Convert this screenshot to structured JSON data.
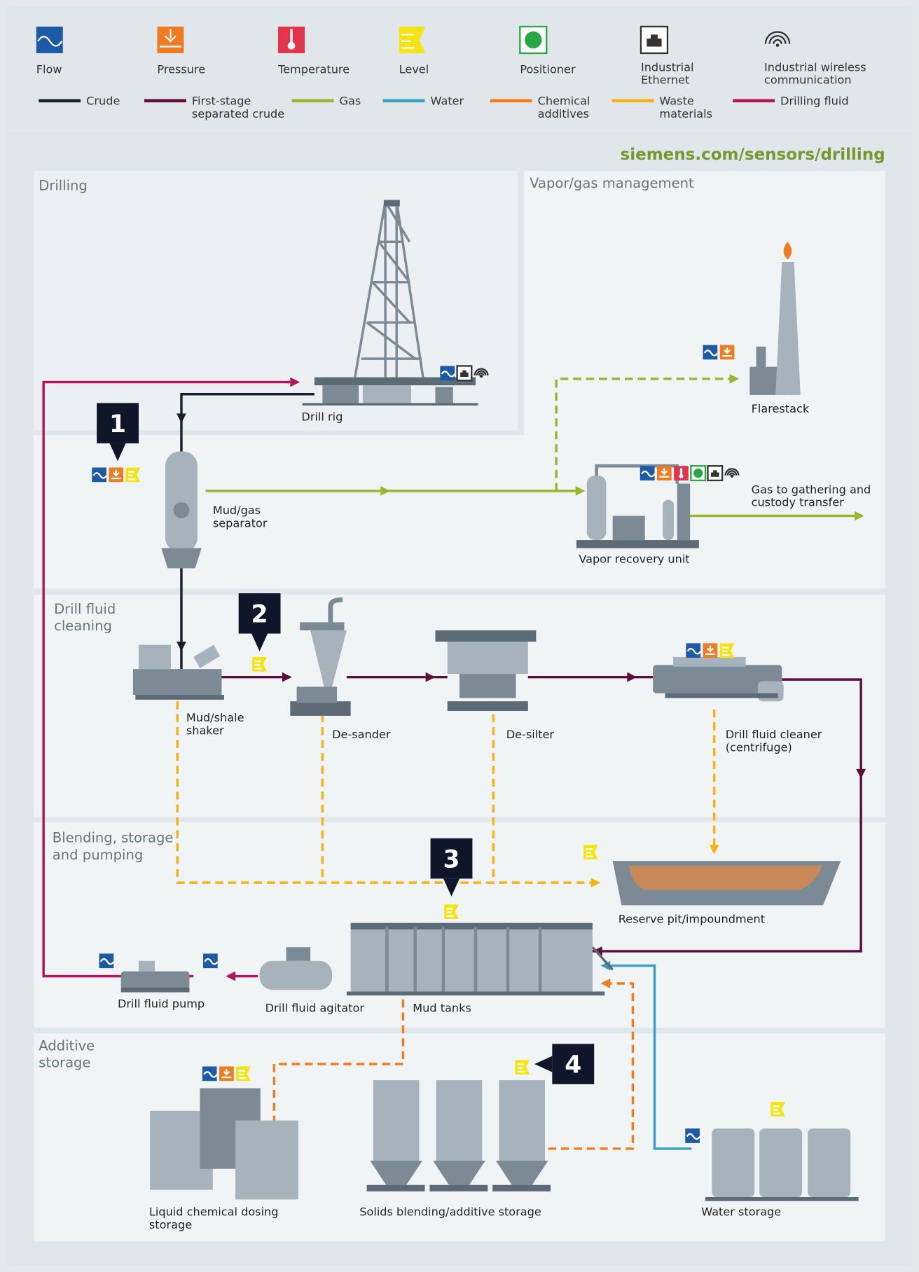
{
  "legend": {
    "instruments": [
      {
        "label": [
          "Flow"
        ]
      },
      {
        "label": [
          "Pressure"
        ]
      },
      {
        "label": [
          "Temperature"
        ]
      },
      {
        "label": [
          "Level"
        ]
      },
      {
        "label": [
          "Positioner"
        ]
      },
      {
        "label": [
          "Industrial",
          "Ethernet"
        ]
      },
      {
        "label": [
          "Industrial wireless",
          "communication"
        ]
      }
    ],
    "media": [
      {
        "label": [
          "Crude"
        ],
        "color": "#17202a"
      },
      {
        "label": [
          "First-stage",
          "separated crude"
        ],
        "color": "#5b0f3a"
      },
      {
        "label": [
          "Gas"
        ],
        "color": "#9bb431"
      },
      {
        "label": [
          "Water"
        ],
        "color": "#3aa0c2"
      },
      {
        "label": [
          "Chemical",
          "additives"
        ],
        "color": "#ef7c22"
      },
      {
        "label": [
          "Waste",
          "materials"
        ],
        "color": "#f6b319"
      },
      {
        "label": [
          "Drilling fluid"
        ],
        "color": "#b0175a"
      }
    ]
  },
  "link": "siemens.com/sensors/drilling",
  "sections": [
    {
      "title": [
        "Drilling"
      ]
    },
    {
      "title": [
        "Vapor/gas management"
      ]
    },
    {
      "title": [
        "Drill fluid",
        "cleaning"
      ]
    },
    {
      "title": [
        "Blending, storage",
        "and pumping"
      ]
    },
    {
      "title": [
        "Additive",
        "storage"
      ]
    }
  ],
  "equipment": [
    {
      "label": [
        "Drill rig"
      ]
    },
    {
      "label": [
        "Flarestack"
      ]
    },
    {
      "label": [
        "Mud/gas",
        "separator"
      ]
    },
    {
      "label": [
        "Gas to gathering and",
        "custody transfer"
      ]
    },
    {
      "label": [
        "Vapor recovery unit"
      ]
    },
    {
      "label": [
        "Mud/shale",
        "shaker"
      ]
    },
    {
      "label": [
        "De-sander"
      ]
    },
    {
      "label": [
        "De-silter"
      ]
    },
    {
      "label": [
        "Drill fluid cleaner",
        "(centrifuge)"
      ]
    },
    {
      "label": [
        "Reserve pit/impoundment"
      ]
    },
    {
      "label": [
        "Drill fluid pump"
      ]
    },
    {
      "label": [
        "Drill fluid agitator"
      ]
    },
    {
      "label": [
        "Mud tanks"
      ]
    },
    {
      "label": [
        "Liquid chemical dosing",
        "storage"
      ]
    },
    {
      "label": [
        "Solids blending/additive storage"
      ]
    },
    {
      "label": [
        "Water storage"
      ]
    }
  ],
  "callouts": [
    "1",
    "2",
    "3",
    "4"
  ]
}
